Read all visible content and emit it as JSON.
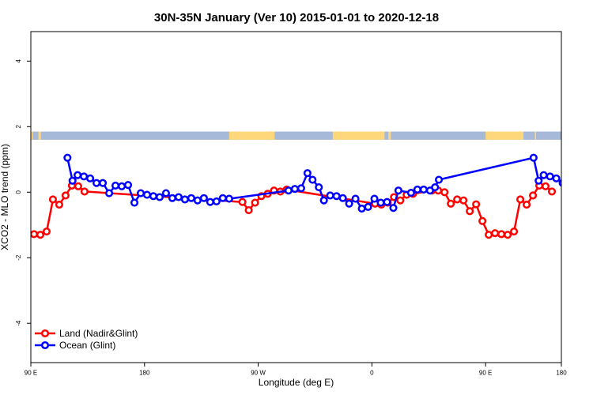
{
  "chart_data": {
    "type": "line",
    "title": "30N-35N January (Ver 10)   2015-01-01 to 2020-12-18",
    "xlabel": "Longitude (deg E)",
    "ylabel": "XCO2 - MLO trend (ppm)",
    "xlim": [
      90,
      510
    ],
    "ylim": [
      -5.2,
      4.9
    ],
    "x_ticks": [
      {
        "value": 90,
        "label": "90 E"
      },
      {
        "value": 180,
        "label": "180"
      },
      {
        "value": 270,
        "label": "90 W"
      },
      {
        "value": 360,
        "label": "0"
      },
      {
        "value": 450,
        "label": "90 E"
      },
      {
        "value": 540,
        "label": "180"
      }
    ],
    "y_ticks": [
      {
        "value": -4,
        "label": "-4"
      },
      {
        "value": -2,
        "label": "-2"
      },
      {
        "value": 0,
        "label": "0"
      },
      {
        "value": 2,
        "label": "2"
      },
      {
        "value": 4,
        "label": "4"
      }
    ],
    "land_mask_band": {
      "y_range": [
        1.6,
        1.85
      ],
      "ocean_color": "#a7b9d9",
      "land_color": "#fdd77a",
      "land_segments_lon": [
        [
          90,
          91.5
        ],
        [
          96,
          98
        ],
        [
          247,
          283
        ],
        [
          329,
          370
        ],
        [
          373,
          375
        ],
        [
          450,
          480
        ],
        [
          489,
          490
        ]
      ]
    },
    "legend": {
      "position": "bottom-left"
    },
    "series": [
      {
        "name": "Land (Nadir&Glint)",
        "color": "#ff0000",
        "points": [
          [
            92.5,
            -1.28
          ],
          [
            97.5,
            -1.3
          ],
          [
            102.5,
            -1.2
          ],
          [
            107.5,
            -0.22
          ],
          [
            112.5,
            -0.38
          ],
          [
            117.5,
            -0.1
          ],
          [
            122.5,
            0.2
          ],
          [
            127.5,
            0.18
          ],
          [
            132.5,
            0.02
          ],
          [
            257.5,
            -0.3
          ],
          [
            262.5,
            -0.55
          ],
          [
            267.5,
            -0.32
          ],
          [
            272.5,
            -0.12
          ],
          [
            277.5,
            -0.05
          ],
          [
            282.5,
            0.05
          ],
          [
            287.5,
            0.02
          ],
          [
            292.5,
            0.08
          ],
          [
            362.5,
            -0.35
          ],
          [
            367.5,
            -0.38
          ],
          [
            372.5,
            -0.32
          ],
          [
            377.5,
            -0.15
          ],
          [
            382.5,
            -0.25
          ],
          [
            387.5,
            -0.08
          ],
          [
            392.5,
            -0.05
          ],
          [
            407.5,
            0.05
          ],
          [
            412.5,
            0.05
          ],
          [
            417.5,
            0.0
          ],
          [
            422.5,
            -0.35
          ],
          [
            427.5,
            -0.22
          ],
          [
            432.5,
            -0.25
          ],
          [
            437.5,
            -0.58
          ],
          [
            442.5,
            -0.37
          ],
          [
            447.5,
            -0.88
          ],
          [
            452.5,
            -1.3
          ],
          [
            457.5,
            -1.25
          ],
          [
            462.5,
            -1.28
          ],
          [
            467.5,
            -1.3
          ],
          [
            472.5,
            -1.2
          ],
          [
            477.5,
            -0.22
          ],
          [
            482.5,
            -0.38
          ],
          [
            487.5,
            -0.1
          ],
          [
            492.5,
            0.2
          ],
          [
            497.5,
            0.18
          ],
          [
            502.5,
            0.02
          ]
        ]
      },
      {
        "name": "Ocean (Glint)",
        "color": "#0000ff",
        "points": [
          [
            119,
            1.05
          ],
          [
            123,
            0.35
          ],
          [
            127,
            0.52
          ],
          [
            132,
            0.48
          ],
          [
            137,
            0.42
          ],
          [
            142,
            0.28
          ],
          [
            147,
            0.28
          ],
          [
            152,
            -0.03
          ],
          [
            157,
            0.2
          ],
          [
            162,
            0.18
          ],
          [
            167,
            0.22
          ],
          [
            172,
            -0.32
          ],
          [
            177,
            -0.03
          ],
          [
            182,
            -0.08
          ],
          [
            187,
            -0.12
          ],
          [
            192,
            -0.15
          ],
          [
            197,
            -0.03
          ],
          [
            202,
            -0.18
          ],
          [
            207,
            -0.15
          ],
          [
            212,
            -0.22
          ],
          [
            217,
            -0.18
          ],
          [
            222,
            -0.25
          ],
          [
            227,
            -0.18
          ],
          [
            232,
            -0.3
          ],
          [
            237,
            -0.28
          ],
          [
            242,
            -0.18
          ],
          [
            247,
            -0.2
          ],
          [
            294,
            0.05
          ],
          [
            299,
            0.1
          ],
          [
            304,
            0.12
          ],
          [
            309,
            0.58
          ],
          [
            313,
            0.38
          ],
          [
            318,
            0.15
          ],
          [
            322,
            -0.25
          ],
          [
            327,
            -0.1
          ],
          [
            332,
            -0.12
          ],
          [
            337,
            -0.18
          ],
          [
            342,
            -0.35
          ],
          [
            347,
            -0.2
          ],
          [
            352,
            -0.5
          ],
          [
            357,
            -0.45
          ],
          [
            362,
            -0.2
          ],
          [
            367,
            -0.32
          ],
          [
            372,
            -0.3
          ],
          [
            377,
            -0.48
          ],
          [
            381,
            0.05
          ],
          [
            391,
            -0.02
          ],
          [
            396,
            0.08
          ],
          [
            401,
            0.08
          ],
          [
            406,
            0.05
          ],
          [
            410,
            0.15
          ],
          [
            413,
            0.38
          ],
          [
            488,
            1.05
          ],
          [
            492,
            0.35
          ],
          [
            496,
            0.52
          ],
          [
            501,
            0.48
          ],
          [
            506,
            0.42
          ],
          [
            511,
            0.28
          ],
          [
            516,
            0.28
          ],
          [
            521,
            -0.03
          ],
          [
            526,
            0.2
          ],
          [
            531,
            0.18
          ],
          [
            536,
            0.22
          ],
          [
            541,
            -0.32
          ],
          [
            545,
            -0.03
          ]
        ]
      }
    ]
  }
}
